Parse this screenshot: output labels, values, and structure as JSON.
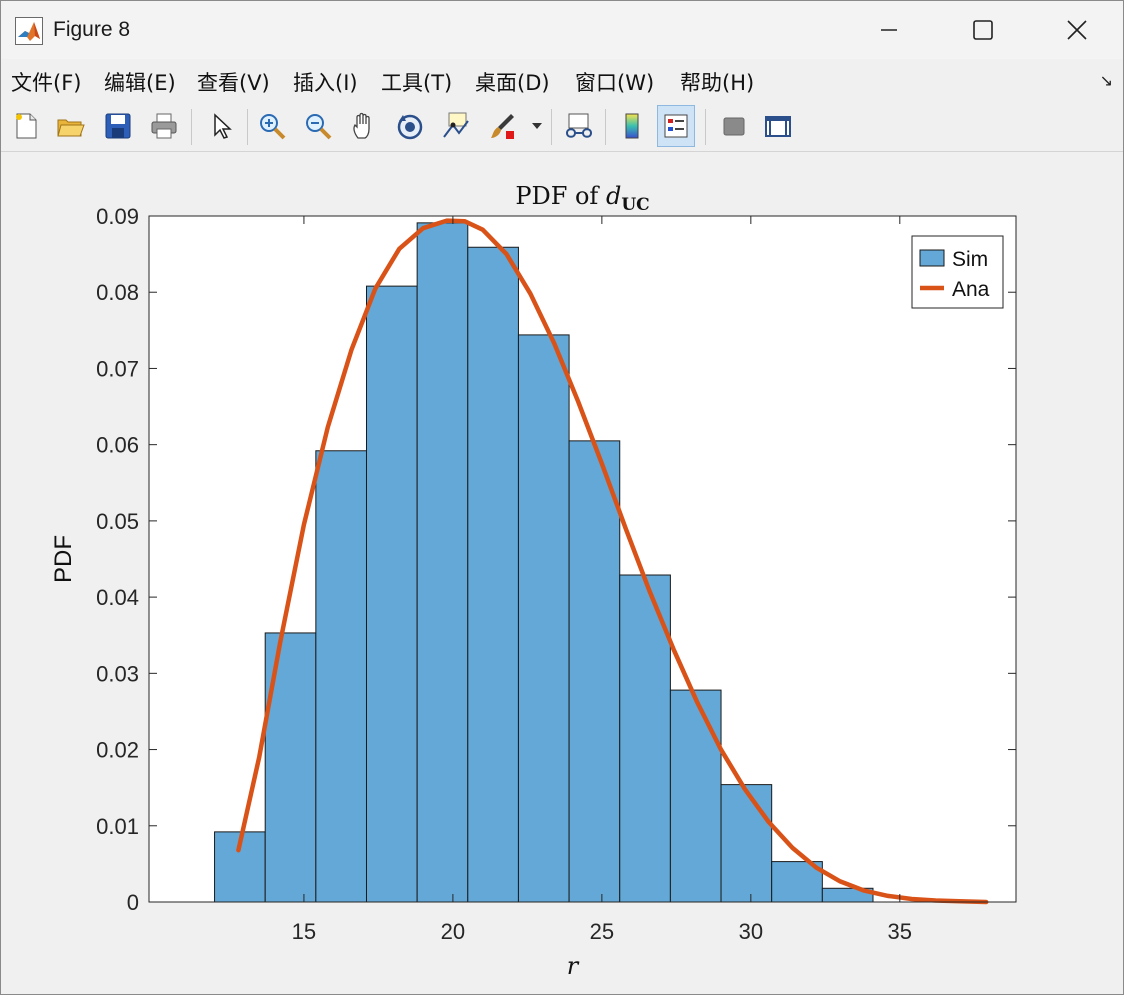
{
  "window": {
    "title": "Figure 8"
  },
  "menu": [
    "文件(F)",
    "编辑(E)",
    "查看(V)",
    "插入(I)",
    "工具(T)",
    "桌面(D)",
    "窗口(W)",
    "帮助(H)"
  ],
  "toolbar": [
    "new-figure-icon",
    "open-file-icon",
    "save-icon",
    "print-icon",
    "select-pointer-icon",
    "zoom-in-icon",
    "zoom-out-icon",
    "pan-icon",
    "rotate-3d-icon",
    "data-cursor-icon",
    "brush-icon",
    "link-plot-icon",
    "colorbar-icon",
    "legend-icon",
    "hide-plot-tools-icon",
    "show-plot-tools-icon"
  ],
  "chart_data": {
    "type": "bar",
    "title": "PDF of d_UC",
    "title_main": "PDF of ",
    "title_var": "d",
    "title_sub": "UC",
    "xlabel": "r",
    "ylabel": "PDF",
    "xlim": [
      9.8,
      38.9
    ],
    "ylim": [
      0,
      0.09
    ],
    "xticks": [
      15,
      20,
      25,
      30,
      35
    ],
    "xtick_labels": [
      "15",
      "20",
      "25",
      "30",
      "35"
    ],
    "yticks": [
      0,
      0.01,
      0.02,
      0.03,
      0.04,
      0.05,
      0.06,
      0.07,
      0.08,
      0.09
    ],
    "ytick_labels": [
      "0",
      "0.01",
      "0.02",
      "0.03",
      "0.04",
      "0.05",
      "0.06",
      "0.07",
      "0.08",
      "0.09"
    ],
    "legend_position": "top-right",
    "series": [
      {
        "name": "Sim",
        "kind": "histogram",
        "color": "#63a8d7",
        "bin_edges": [
          12.0,
          13.7,
          15.4,
          17.1,
          18.8,
          20.5,
          22.2,
          23.9,
          25.6,
          27.3,
          29.0,
          30.7,
          32.4,
          34.1
        ],
        "values": [
          0.0092,
          0.0353,
          0.0592,
          0.0808,
          0.0891,
          0.0859,
          0.0744,
          0.0605,
          0.0429,
          0.0278,
          0.0154,
          0.0053,
          0.0018
        ]
      },
      {
        "name": "Ana",
        "kind": "line",
        "color": "#d95319",
        "x": [
          12.8,
          13.5,
          14.2,
          15.0,
          15.8,
          16.6,
          17.4,
          18.2,
          19.0,
          19.8,
          20.4,
          21.0,
          21.8,
          22.6,
          23.4,
          24.2,
          25.0,
          25.8,
          26.6,
          27.4,
          28.2,
          29.0,
          29.8,
          30.6,
          31.4,
          32.2,
          33.0,
          33.8,
          34.6,
          35.4,
          36.2,
          37.0,
          37.9
        ],
        "y": [
          0.0068,
          0.019,
          0.034,
          0.0495,
          0.0623,
          0.0725,
          0.0805,
          0.0857,
          0.0884,
          0.0894,
          0.0893,
          0.0882,
          0.085,
          0.0798,
          0.0733,
          0.0657,
          0.0575,
          0.049,
          0.0408,
          0.0332,
          0.0262,
          0.02,
          0.0148,
          0.0105,
          0.0071,
          0.0045,
          0.0027,
          0.0015,
          0.0008,
          0.0004,
          0.0002,
          0.0001,
          0.0
        ]
      }
    ]
  }
}
